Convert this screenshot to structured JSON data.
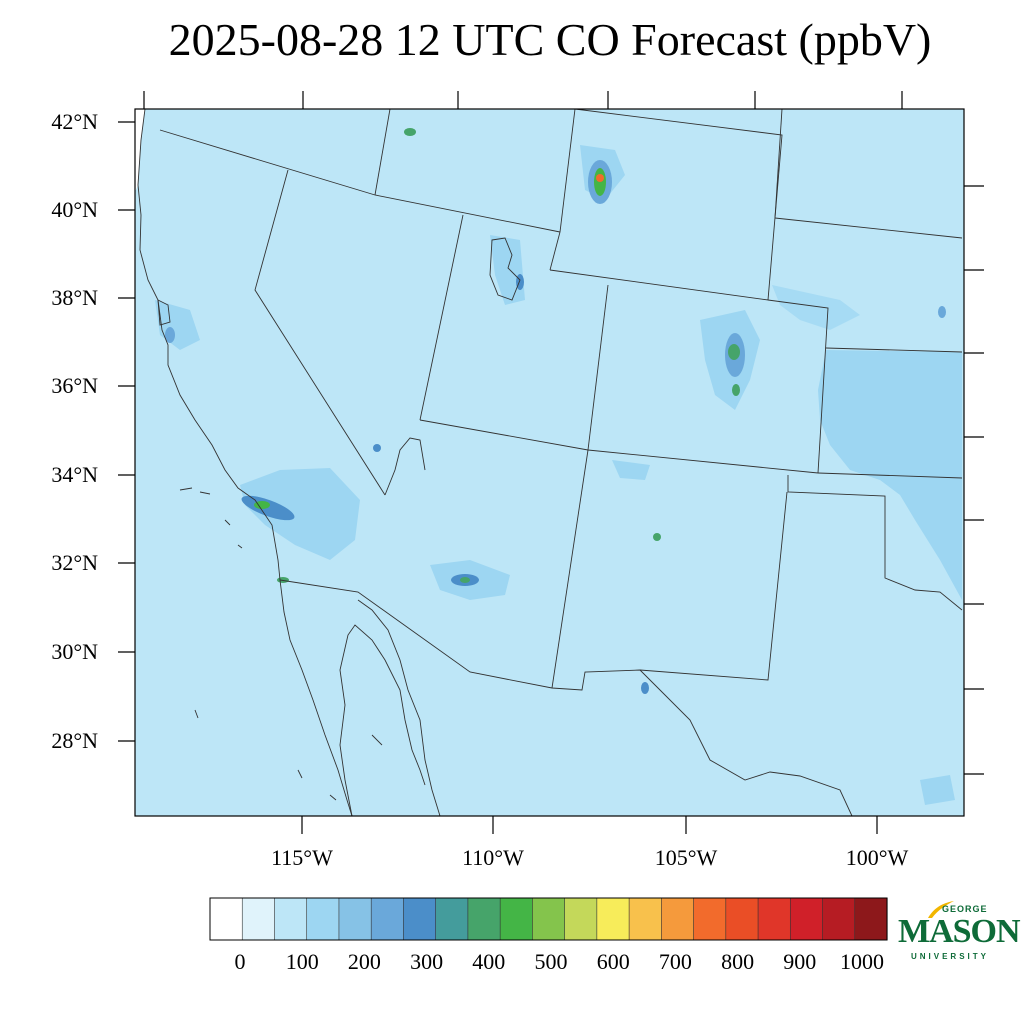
{
  "title": "2025-08-28 12 UTC CO Forecast (ppbV)",
  "map": {
    "lat_ticks": [
      "42°N",
      "40°N",
      "38°N",
      "36°N",
      "34°N",
      "32°N",
      "30°N",
      "28°N"
    ],
    "lon_ticks": [
      "115°W",
      "110°W",
      "105°W",
      "100°W"
    ],
    "background_color": "#bde6f7"
  },
  "colorbar": {
    "labels": [
      "0",
      "100",
      "200",
      "300",
      "400",
      "500",
      "600",
      "700",
      "800",
      "900",
      "1000"
    ],
    "colors": [
      "#ffffff",
      "#e0f3fb",
      "#bde6f7",
      "#9dd6f2",
      "#86c2e6",
      "#6aa8da",
      "#4b8ec9",
      "#449c9c",
      "#46a46a",
      "#44b546",
      "#84c44c",
      "#c4d85a",
      "#f7ec5a",
      "#f8c14c",
      "#f59a3c",
      "#f26b2c",
      "#ea4e26",
      "#e03629",
      "#d02029",
      "#b61c23",
      "#8d181b"
    ]
  },
  "logo": {
    "top_text": "GEORGE",
    "main_text": "MASON",
    "bottom_text": "UNIVERSITY"
  }
}
